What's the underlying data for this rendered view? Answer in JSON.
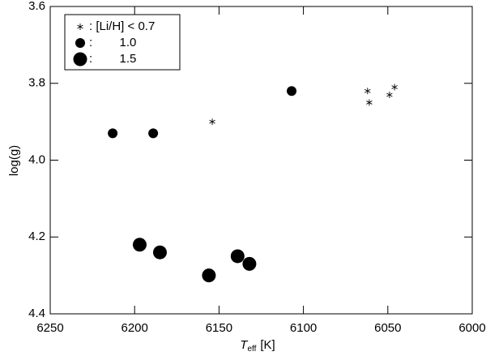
{
  "chart_data": {
    "type": "scatter",
    "xlabel": {
      "main": "T",
      "sub": "eff",
      "unit": "[K]"
    },
    "ylabel": "log(g)",
    "xlim": [
      6250,
      6000
    ],
    "ylim": [
      4.4,
      3.6
    ],
    "xticks": [
      6250,
      6200,
      6150,
      6100,
      6050,
      6000
    ],
    "yticks": [
      3.6,
      3.8,
      {
        "value": 4,
        "label": "4.0"
      },
      4.2,
      4.4
    ],
    "legend": "upper left",
    "series": [
      {
        "name": ": [Li/H] < 0.7",
        "color": "#000000",
        "marker": "asterisk",
        "x": [
          6154,
          6062,
          6061,
          6049,
          6046
        ],
        "values": [
          3.9,
          3.82,
          3.85,
          3.83,
          3.81
        ]
      },
      {
        "name": ":        1.0",
        "color": "#000000",
        "marker": "dot",
        "x": [
          6213,
          6189,
          6107
        ],
        "values": [
          3.93,
          3.93,
          3.82
        ]
      },
      {
        "name": ":        1.5",
        "color": "#000000",
        "marker": "big-dot",
        "x": [
          6197,
          6185,
          6156,
          6139,
          6132
        ],
        "values": [
          4.22,
          4.24,
          4.3,
          4.25,
          4.27
        ]
      }
    ]
  }
}
